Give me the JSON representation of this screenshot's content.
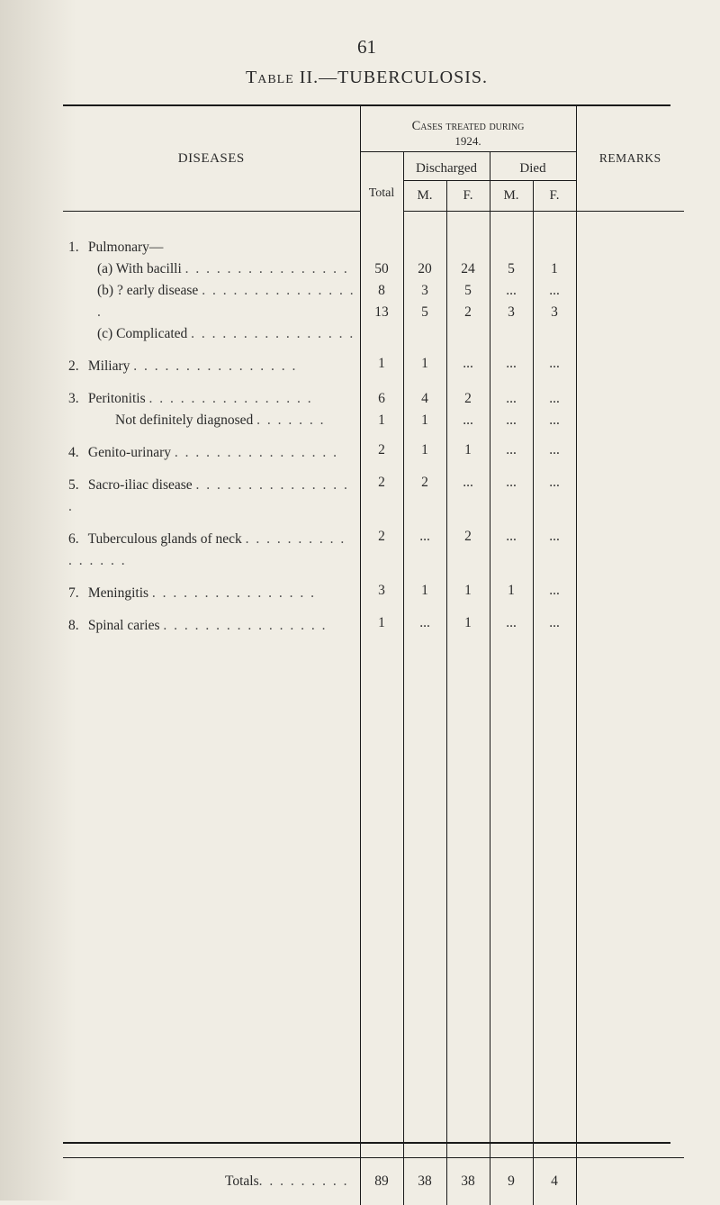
{
  "page_number": "61",
  "title": "Table II.—TUBERCULOSIS.",
  "header": {
    "diseases": "DISEASES",
    "cases_line1": "Cases treated during",
    "cases_line2": "1924.",
    "total": "Total",
    "discharged": "Discharged",
    "died": "Died",
    "m": "M.",
    "f": "F.",
    "remarks": "REMARKS"
  },
  "rows": [
    {
      "type": "group",
      "num": "1.",
      "label": "Pulmonary—",
      "sub": [
        {
          "label": "(a) With bacilli",
          "total": "50",
          "dm": "20",
          "df": "24",
          "xm": "5",
          "xf": "1"
        },
        {
          "label": "(b) ? early disease",
          "total": "8",
          "dm": "3",
          "df": "5",
          "xm": "...",
          "xf": "..."
        },
        {
          "label": "(c) Complicated",
          "total": "13",
          "dm": "5",
          "df": "2",
          "xm": "3",
          "xf": "3"
        }
      ]
    },
    {
      "num": "2.",
      "label": "Miliary",
      "total": "1",
      "dm": "1",
      "df": "...",
      "xm": "...",
      "xf": "..."
    },
    {
      "type": "group",
      "num": "3.",
      "label": "Peritonitis",
      "vals": {
        "total": "6",
        "dm": "4",
        "df": "2",
        "xm": "...",
        "xf": "..."
      },
      "sub": [
        {
          "label": "Not definitely diagnosed",
          "total": "1",
          "dm": "1",
          "df": "...",
          "xm": "...",
          "xf": "..."
        }
      ]
    },
    {
      "num": "4.",
      "label": "Genito-urinary",
      "total": "2",
      "dm": "1",
      "df": "1",
      "xm": "...",
      "xf": "..."
    },
    {
      "num": "5.",
      "label": "Sacro-iliac disease",
      "total": "2",
      "dm": "2",
      "df": "...",
      "xm": "...",
      "xf": "..."
    },
    {
      "num": "6.",
      "label": "Tuberculous glands of neck",
      "total": "2",
      "dm": "...",
      "df": "2",
      "xm": "...",
      "xf": "..."
    },
    {
      "num": "7.",
      "label": "Meningitis",
      "total": "3",
      "dm": "1",
      "df": "1",
      "xm": "1",
      "xf": "..."
    },
    {
      "num": "8.",
      "label": "Spinal caries",
      "total": "1",
      "dm": "...",
      "df": "1",
      "xm": "...",
      "xf": "..."
    }
  ],
  "totals": {
    "label": "Totals",
    "total": "89",
    "dm": "38",
    "df": "38",
    "xm": "9",
    "xf": "4"
  },
  "colors": {
    "page_bg": "#f0ede4",
    "text": "#2a2a2a",
    "rule": "#1a1a1a"
  },
  "dots": ". . . . . . . . . . . . . . . ."
}
